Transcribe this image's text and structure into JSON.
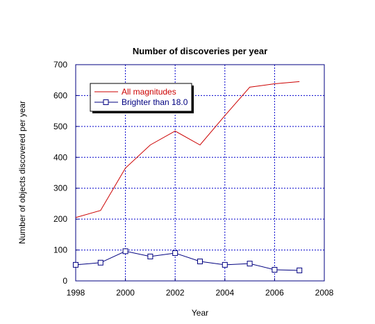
{
  "chart_data": {
    "type": "line",
    "title": "Number of discoveries per year",
    "xlabel": "Year",
    "ylabel": "Number of objects discovered per year",
    "xlim": [
      1998,
      2008
    ],
    "ylim": [
      0,
      700
    ],
    "xticks": [
      1998,
      2000,
      2002,
      2004,
      2006,
      2008
    ],
    "yticks": [
      0,
      100,
      200,
      300,
      400,
      500,
      600,
      700
    ],
    "grid": true,
    "legend_position": "top-left",
    "series": [
      {
        "name": "All magnitudes",
        "color": "#cc0000",
        "marker": "none",
        "x": [
          1998,
          1999,
          2000,
          2001,
          2002,
          2003,
          2004,
          2005,
          2006,
          2007
        ],
        "values": [
          205,
          228,
          365,
          440,
          485,
          440,
          535,
          627,
          638,
          645
        ]
      },
      {
        "name": "Brighter than 18.0",
        "color": "#000080",
        "marker": "square",
        "x": [
          1998,
          1999,
          2000,
          2001,
          2002,
          2003,
          2004,
          2005,
          2006,
          2007
        ],
        "values": [
          52,
          59,
          96,
          79,
          90,
          63,
          52,
          56,
          36,
          34
        ]
      }
    ]
  }
}
